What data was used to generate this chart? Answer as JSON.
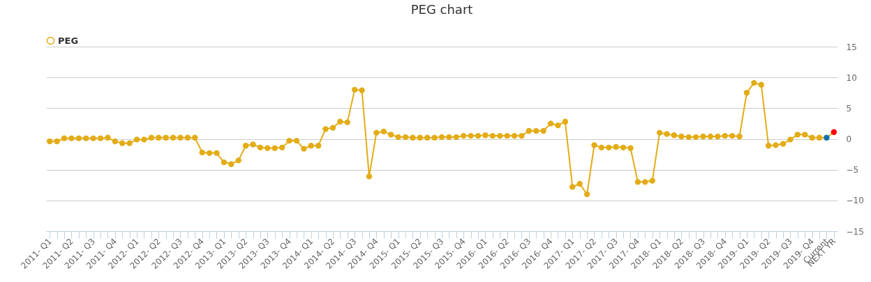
{
  "chart_data": {
    "type": "line",
    "title": "PEG chart",
    "categories": [
      "2011- Q1",
      null,
      null,
      "2011- Q2",
      null,
      null,
      "2011- Q3",
      null,
      null,
      "2011- Q4",
      null,
      null,
      "2012- Q1",
      null,
      null,
      "2012- Q2",
      null,
      null,
      "2012- Q3",
      null,
      null,
      "2012- Q4",
      null,
      null,
      "2013- Q1",
      null,
      null,
      "2013- Q2",
      null,
      null,
      "2013- Q3",
      null,
      null,
      "2013- Q4",
      null,
      null,
      "2014- Q1",
      null,
      null,
      "2014- Q2",
      null,
      null,
      "2014- Q3",
      null,
      null,
      "2014- Q4",
      null,
      null,
      "2015- Q1",
      null,
      null,
      "2015- Q2",
      null,
      null,
      "2015- Q3",
      null,
      null,
      "2015- Q4",
      null,
      null,
      "2016- Q1",
      null,
      null,
      "2016- Q2",
      null,
      null,
      "2016- Q3",
      null,
      null,
      "2016- Q4",
      null,
      null,
      "2017- Q1",
      null,
      null,
      "2017- Q2",
      null,
      null,
      "2017- Q3",
      null,
      null,
      "2017- Q4",
      null,
      null,
      "2018- Q1",
      null,
      null,
      "2018- Q2",
      null,
      null,
      "2018- Q3",
      null,
      null,
      "2018- Q4",
      null,
      null,
      "2019- Q1",
      null,
      null,
      "2019- Q2",
      null,
      null,
      "2019- Q3",
      null,
      null,
      "2019- Q4",
      null,
      "Current",
      "NEXT YR"
    ],
    "series": [
      {
        "name": "PEG",
        "color": "#e3ac16",
        "colors": [
          "#e3ac16",
          "#e3ac16",
          "#e3ac16",
          "#e3ac16",
          "#e3ac16",
          "#e3ac16",
          "#e3ac16",
          "#e3ac16",
          "#e3ac16",
          "#e3ac16",
          "#e3ac16",
          "#e3ac16",
          "#e3ac16",
          "#e3ac16",
          "#e3ac16",
          "#e3ac16",
          "#e3ac16",
          "#e3ac16",
          "#e3ac16",
          "#e3ac16",
          "#e3ac16",
          "#e3ac16",
          "#e3ac16",
          "#e3ac16",
          "#e3ac16",
          "#e3ac16",
          "#e3ac16",
          "#e3ac16",
          "#e3ac16",
          "#e3ac16",
          "#e3ac16",
          "#e3ac16",
          "#e3ac16",
          "#e3ac16",
          "#e3ac16",
          "#e3ac16",
          "#e3ac16",
          "#e3ac16",
          "#e3ac16",
          "#e3ac16",
          "#e3ac16",
          "#e3ac16",
          "#e3ac16",
          "#e3ac16",
          "#e3ac16",
          "#e3ac16",
          "#e3ac16",
          "#e3ac16",
          "#e3ac16",
          "#e3ac16",
          "#e3ac16",
          "#e3ac16",
          "#e3ac16",
          "#e3ac16",
          "#e3ac16",
          "#e3ac16",
          "#e3ac16",
          "#e3ac16",
          "#e3ac16",
          "#e3ac16",
          "#e3ac16",
          "#e3ac16",
          "#e3ac16",
          "#e3ac16",
          "#e3ac16",
          "#e3ac16",
          "#e3ac16",
          "#e3ac16",
          "#e3ac16",
          "#e3ac16",
          "#e3ac16",
          "#e3ac16",
          "#e3ac16",
          "#e3ac16",
          "#e3ac16",
          "#e3ac16",
          "#e3ac16",
          "#e3ac16",
          "#e3ac16",
          "#e3ac16",
          "#e3ac16",
          "#e3ac16",
          "#e3ac16",
          "#e3ac16",
          "#e3ac16",
          "#e3ac16",
          "#e3ac16",
          "#e3ac16",
          "#e3ac16",
          "#e3ac16",
          "#e3ac16",
          "#e3ac16",
          "#e3ac16",
          "#e3ac16",
          "#e3ac16",
          "#e3ac16",
          "#e3ac16",
          "#e3ac16",
          "#e3ac16",
          "#e3ac16",
          "#e3ac16",
          "#e3ac16",
          "#e3ac16",
          "#e3ac16",
          "#e3ac16",
          "#e3ac16",
          "#e3ac16",
          "#1170a8",
          "#ff0000"
        ],
        "values": [
          -0.4,
          -0.4,
          0.1,
          0.1,
          0.1,
          0.1,
          0.1,
          0.1,
          0.2,
          -0.4,
          -0.7,
          -0.7,
          -0.1,
          -0.1,
          0.2,
          0.2,
          0.2,
          0.2,
          0.2,
          0.2,
          0.2,
          -2.2,
          -2.3,
          -2.3,
          -3.8,
          -4.1,
          -3.5,
          -1.1,
          -0.9,
          -1.4,
          -1.5,
          -1.5,
          -1.4,
          -0.3,
          -0.3,
          -1.6,
          -1.1,
          -1.1,
          1.6,
          1.8,
          2.8,
          2.7,
          8.0,
          7.9,
          -6.1,
          1.0,
          1.2,
          0.7,
          0.3,
          0.3,
          0.2,
          0.2,
          0.2,
          0.2,
          0.3,
          0.3,
          0.3,
          0.5,
          0.5,
          0.5,
          0.6,
          0.5,
          0.5,
          0.5,
          0.5,
          0.5,
          1.3,
          1.3,
          1.3,
          2.5,
          2.2,
          2.8,
          -7.8,
          -7.3,
          -9.0,
          -1.0,
          -1.4,
          -1.4,
          -1.3,
          -1.4,
          -1.5,
          -7.0,
          -7.0,
          -6.8,
          1.0,
          0.8,
          0.6,
          0.4,
          0.3,
          0.3,
          0.4,
          0.4,
          0.4,
          0.5,
          0.5,
          0.4,
          7.5,
          9.1,
          8.8,
          -1.1,
          -1.0,
          -0.8,
          -0.1,
          0.7,
          0.7,
          0.2,
          0.2,
          0.2,
          1.1
        ]
      }
    ],
    "ylim": [
      -15,
      15
    ],
    "yticks": [
      -15,
      -10,
      -5,
      0,
      5,
      10,
      15
    ],
    "grid": "y",
    "legend": "top",
    "marker": "circle",
    "line_style": "solid"
  }
}
